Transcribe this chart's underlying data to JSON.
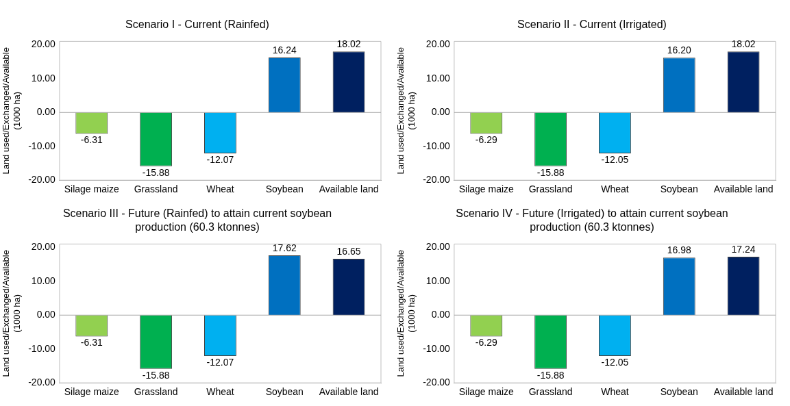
{
  "chart_data": [
    {
      "type": "bar",
      "title": "Scenario I - Current (Rainfed)",
      "ylabel": "Land used/Exchanged/Available (1000 ha)",
      "categories": [
        "Silage maize",
        "Grassland",
        "Wheat",
        "Soybean",
        "Available land"
      ],
      "values": [
        -6.31,
        -15.88,
        -12.07,
        16.24,
        18.02
      ],
      "value_labels": [
        "-6.31",
        "-15.88",
        "-12.07",
        "16.24",
        "18.02"
      ],
      "colors": [
        "#92d050",
        "#00b050",
        "#00b0f0",
        "#0070c0",
        "#002060"
      ],
      "ylim": [
        -20,
        21
      ],
      "yticks": [
        {
          "value": -20,
          "label": "-20.00"
        },
        {
          "value": -10,
          "label": "-10.00"
        },
        {
          "value": 0,
          "label": "0.00"
        },
        {
          "value": 10,
          "label": "10.00"
        },
        {
          "value": 20,
          "label": "20.00"
        }
      ],
      "legend": false
    },
    {
      "type": "bar",
      "title": "Scenario II - Current (Irrigated)",
      "ylabel": "Land used/Exchanged/Available (1000 ha)",
      "categories": [
        "Silage maize",
        "Grassland",
        "Wheat",
        "Soybean",
        "Available land"
      ],
      "values": [
        -6.29,
        -15.88,
        -12.05,
        16.2,
        18.02
      ],
      "value_labels": [
        "-6.29",
        "-15.88",
        "-12.05",
        "16.20",
        "18.02"
      ],
      "colors": [
        "#92d050",
        "#00b050",
        "#00b0f0",
        "#0070c0",
        "#002060"
      ],
      "ylim": [
        -20,
        21
      ],
      "yticks": [
        {
          "value": -20,
          "label": "-20.00"
        },
        {
          "value": -10,
          "label": "-10.00"
        },
        {
          "value": 0,
          "label": "0.00"
        },
        {
          "value": 10,
          "label": "10.00"
        },
        {
          "value": 20,
          "label": "20.00"
        }
      ],
      "legend": false
    },
    {
      "type": "bar",
      "title": "Scenario III - Future (Rainfed) to attain current soybean production (60.3 ktonnes)",
      "ylabel": "Land used/Exchanged/Available (1000 ha)",
      "categories": [
        "Silage maize",
        "Grassland",
        "Wheat",
        "Soybean",
        "Available land"
      ],
      "values": [
        -6.31,
        -15.88,
        -12.07,
        17.62,
        16.65
      ],
      "value_labels": [
        "-6.31",
        "-15.88",
        "-12.07",
        "17.62",
        "16.65"
      ],
      "colors": [
        "#92d050",
        "#00b050",
        "#00b0f0",
        "#0070c0",
        "#002060"
      ],
      "ylim": [
        -20,
        21
      ],
      "yticks": [
        {
          "value": -20,
          "label": "-20.00"
        },
        {
          "value": -10,
          "label": "-10.00"
        },
        {
          "value": 0,
          "label": "0.00"
        },
        {
          "value": 10,
          "label": "10.00"
        },
        {
          "value": 20,
          "label": "20.00"
        }
      ],
      "legend": false
    },
    {
      "type": "bar",
      "title": "Scenario IV - Future (Irrigated) to attain current soybean production (60.3 ktonnes)",
      "ylabel": "Land used/Exchanged/Available (1000 ha)",
      "categories": [
        "Silage maize",
        "Grassland",
        "Wheat",
        "Soybean",
        "Available land"
      ],
      "values": [
        -6.29,
        -15.88,
        -12.05,
        16.98,
        17.24
      ],
      "value_labels": [
        "-6.29",
        "-15.88",
        "-12.05",
        "16.98",
        "17.24"
      ],
      "colors": [
        "#92d050",
        "#00b050",
        "#00b0f0",
        "#0070c0",
        "#002060"
      ],
      "ylim": [
        -20,
        21
      ],
      "yticks": [
        {
          "value": -20,
          "label": "-20.00"
        },
        {
          "value": -10,
          "label": "-10.00"
        },
        {
          "value": 0,
          "label": "0.00"
        },
        {
          "value": 10,
          "label": "10.00"
        },
        {
          "value": 20,
          "label": "20.00"
        }
      ],
      "legend": false
    }
  ]
}
